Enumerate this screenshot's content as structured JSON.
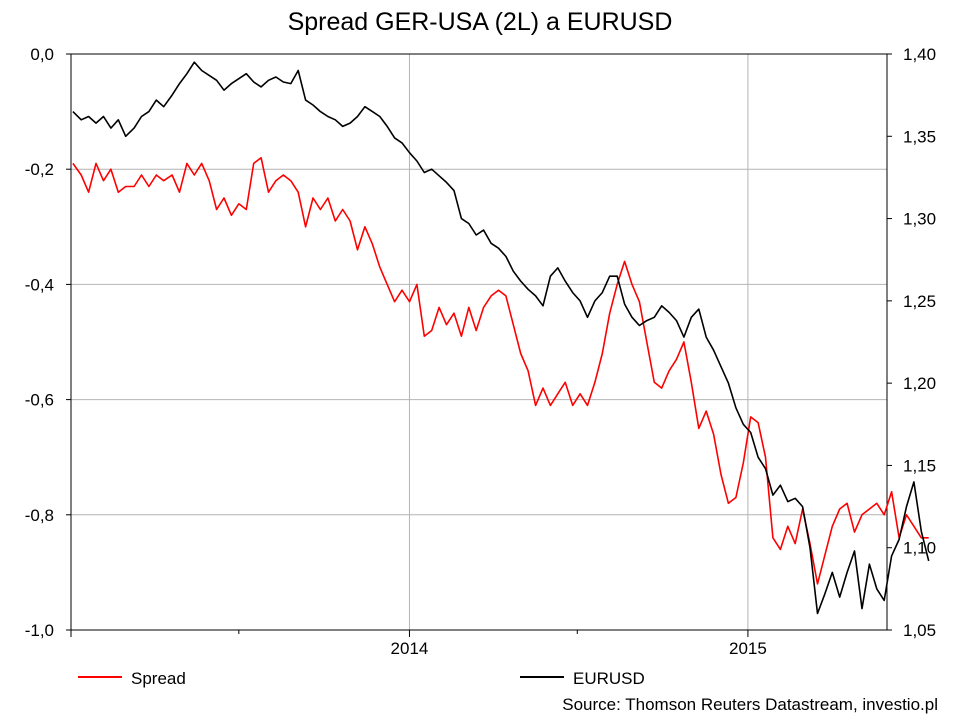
{
  "chart_data": {
    "type": "line",
    "title": "Spread GER-USA (2L) a EURUSD",
    "source": "Source: Thomson Reuters Datastream, investio.pl",
    "x_range": [
      "2013-01-01",
      "2015-05-31"
    ],
    "x_tick_labels": [
      {
        "date": "2014-01-01",
        "label": "2014"
      },
      {
        "date": "2015-01-01",
        "label": "2015"
      }
    ],
    "x_minor_ticks": [
      "2013-07-01",
      "2014-07-01"
    ],
    "left_axis": {
      "ylim": [
        -1.0,
        0.0
      ],
      "ticks": [
        0.0,
        -0.2,
        -0.4,
        -0.6,
        -0.8,
        -1.0
      ],
      "tick_labels": [
        "0,0",
        "-0,2",
        "-0,4",
        "-0,6",
        "-0,8",
        "-1,0"
      ]
    },
    "right_axis": {
      "ylim": [
        1.05,
        1.4
      ],
      "ticks": [
        1.4,
        1.35,
        1.3,
        1.25,
        1.2,
        1.15,
        1.1,
        1.05
      ],
      "tick_labels": [
        "1,40",
        "1,35",
        "1,30",
        "1,25",
        "1,20",
        "1,15",
        "1,10",
        "1,05"
      ]
    },
    "grid": true,
    "legend_position": "bottom",
    "series": [
      {
        "name": "Spread",
        "axis": "left",
        "color": "#ff0000",
        "points": [
          [
            "2013-01-03",
            -0.19
          ],
          [
            "2013-01-12",
            -0.21
          ],
          [
            "2013-01-20",
            -0.24
          ],
          [
            "2013-01-28",
            -0.19
          ],
          [
            "2013-02-05",
            -0.22
          ],
          [
            "2013-02-13",
            -0.2
          ],
          [
            "2013-02-21",
            -0.24
          ],
          [
            "2013-03-01",
            -0.23
          ],
          [
            "2013-03-10",
            -0.23
          ],
          [
            "2013-03-18",
            -0.21
          ],
          [
            "2013-03-26",
            -0.23
          ],
          [
            "2013-04-03",
            -0.21
          ],
          [
            "2013-04-11",
            -0.22
          ],
          [
            "2013-04-20",
            -0.21
          ],
          [
            "2013-04-28",
            -0.24
          ],
          [
            "2013-05-06",
            -0.19
          ],
          [
            "2013-05-14",
            -0.21
          ],
          [
            "2013-05-22",
            -0.19
          ],
          [
            "2013-05-30",
            -0.22
          ],
          [
            "2013-06-07",
            -0.27
          ],
          [
            "2013-06-15",
            -0.25
          ],
          [
            "2013-06-23",
            -0.28
          ],
          [
            "2013-07-01",
            -0.26
          ],
          [
            "2013-07-09",
            -0.27
          ],
          [
            "2013-07-17",
            -0.19
          ],
          [
            "2013-07-25",
            -0.18
          ],
          [
            "2013-08-02",
            -0.24
          ],
          [
            "2013-08-10",
            -0.22
          ],
          [
            "2013-08-18",
            -0.21
          ],
          [
            "2013-08-26",
            -0.22
          ],
          [
            "2013-09-03",
            -0.24
          ],
          [
            "2013-09-11",
            -0.3
          ],
          [
            "2013-09-19",
            -0.25
          ],
          [
            "2013-09-27",
            -0.27
          ],
          [
            "2013-10-05",
            -0.25
          ],
          [
            "2013-10-13",
            -0.29
          ],
          [
            "2013-10-21",
            -0.27
          ],
          [
            "2013-10-29",
            -0.29
          ],
          [
            "2013-11-06",
            -0.34
          ],
          [
            "2013-11-14",
            -0.3
          ],
          [
            "2013-11-22",
            -0.33
          ],
          [
            "2013-11-30",
            -0.37
          ],
          [
            "2013-12-08",
            -0.4
          ],
          [
            "2013-12-16",
            -0.43
          ],
          [
            "2013-12-24",
            -0.41
          ],
          [
            "2014-01-01",
            -0.43
          ],
          [
            "2014-01-09",
            -0.4
          ],
          [
            "2014-01-17",
            -0.49
          ],
          [
            "2014-01-25",
            -0.48
          ],
          [
            "2014-02-02",
            -0.44
          ],
          [
            "2014-02-10",
            -0.47
          ],
          [
            "2014-02-18",
            -0.45
          ],
          [
            "2014-02-26",
            -0.49
          ],
          [
            "2014-03-06",
            -0.44
          ],
          [
            "2014-03-14",
            -0.48
          ],
          [
            "2014-03-22",
            -0.44
          ],
          [
            "2014-03-30",
            -0.42
          ],
          [
            "2014-04-07",
            -0.41
          ],
          [
            "2014-04-15",
            -0.42
          ],
          [
            "2014-04-23",
            -0.47
          ],
          [
            "2014-05-01",
            -0.52
          ],
          [
            "2014-05-09",
            -0.55
          ],
          [
            "2014-05-17",
            -0.61
          ],
          [
            "2014-05-25",
            -0.58
          ],
          [
            "2014-06-02",
            -0.61
          ],
          [
            "2014-06-10",
            -0.59
          ],
          [
            "2014-06-18",
            -0.57
          ],
          [
            "2014-06-26",
            -0.61
          ],
          [
            "2014-07-04",
            -0.59
          ],
          [
            "2014-07-12",
            -0.61
          ],
          [
            "2014-07-20",
            -0.57
          ],
          [
            "2014-07-28",
            -0.52
          ],
          [
            "2014-08-05",
            -0.45
          ],
          [
            "2014-08-13",
            -0.4
          ],
          [
            "2014-08-21",
            -0.36
          ],
          [
            "2014-08-29",
            -0.4
          ],
          [
            "2014-09-06",
            -0.43
          ],
          [
            "2014-09-14",
            -0.5
          ],
          [
            "2014-09-22",
            -0.57
          ],
          [
            "2014-09-30",
            -0.58
          ],
          [
            "2014-10-08",
            -0.55
          ],
          [
            "2014-10-16",
            -0.53
          ],
          [
            "2014-10-24",
            -0.5
          ],
          [
            "2014-11-01",
            -0.57
          ],
          [
            "2014-11-09",
            -0.65
          ],
          [
            "2014-11-17",
            -0.62
          ],
          [
            "2014-11-25",
            -0.66
          ],
          [
            "2014-12-03",
            -0.73
          ],
          [
            "2014-12-11",
            -0.78
          ],
          [
            "2014-12-19",
            -0.77
          ],
          [
            "2014-12-27",
            -0.71
          ],
          [
            "2015-01-04",
            -0.63
          ],
          [
            "2015-01-12",
            -0.64
          ],
          [
            "2015-01-20",
            -0.7
          ],
          [
            "2015-01-28",
            -0.84
          ],
          [
            "2015-02-05",
            -0.86
          ],
          [
            "2015-02-13",
            -0.82
          ],
          [
            "2015-02-21",
            -0.85
          ],
          [
            "2015-03-01",
            -0.79
          ],
          [
            "2015-03-09",
            -0.85
          ],
          [
            "2015-03-17",
            -0.92
          ],
          [
            "2015-03-25",
            -0.87
          ],
          [
            "2015-04-02",
            -0.82
          ],
          [
            "2015-04-10",
            -0.79
          ],
          [
            "2015-04-18",
            -0.78
          ],
          [
            "2015-04-26",
            -0.83
          ],
          [
            "2015-05-04",
            -0.8
          ],
          [
            "2015-05-12",
            -0.79
          ],
          [
            "2015-05-20",
            -0.78
          ],
          [
            "2015-05-28",
            -0.8
          ],
          [
            "2015-06-05",
            -0.76
          ],
          [
            "2015-06-13",
            -0.84
          ],
          [
            "2015-06-21",
            -0.8
          ],
          [
            "2015-06-29",
            -0.82
          ],
          [
            "2015-07-07",
            -0.84
          ],
          [
            "2015-07-15",
            -0.84
          ]
        ]
      },
      {
        "name": "EURUSD",
        "axis": "right",
        "color": "#000000",
        "points": [
          [
            "2013-01-03",
            1.365
          ],
          [
            "2013-01-12",
            1.36
          ],
          [
            "2013-01-20",
            1.362
          ],
          [
            "2013-01-28",
            1.358
          ],
          [
            "2013-02-05",
            1.362
          ],
          [
            "2013-02-13",
            1.355
          ],
          [
            "2013-02-21",
            1.36
          ],
          [
            "2013-03-01",
            1.35
          ],
          [
            "2013-03-10",
            1.355
          ],
          [
            "2013-03-18",
            1.362
          ],
          [
            "2013-03-26",
            1.365
          ],
          [
            "2013-04-03",
            1.372
          ],
          [
            "2013-04-11",
            1.368
          ],
          [
            "2013-04-20",
            1.375
          ],
          [
            "2013-04-28",
            1.382
          ],
          [
            "2013-05-06",
            1.388
          ],
          [
            "2013-05-14",
            1.395
          ],
          [
            "2013-05-22",
            1.39
          ],
          [
            "2013-05-30",
            1.387
          ],
          [
            "2013-06-07",
            1.384
          ],
          [
            "2013-06-15",
            1.378
          ],
          [
            "2013-06-23",
            1.382
          ],
          [
            "2013-07-01",
            1.385
          ],
          [
            "2013-07-09",
            1.388
          ],
          [
            "2013-07-17",
            1.383
          ],
          [
            "2013-07-25",
            1.38
          ],
          [
            "2013-08-02",
            1.384
          ],
          [
            "2013-08-10",
            1.386
          ],
          [
            "2013-08-18",
            1.383
          ],
          [
            "2013-08-26",
            1.382
          ],
          [
            "2013-09-03",
            1.39
          ],
          [
            "2013-09-11",
            1.372
          ],
          [
            "2013-09-19",
            1.369
          ],
          [
            "2013-09-27",
            1.365
          ],
          [
            "2013-10-05",
            1.362
          ],
          [
            "2013-10-13",
            1.36
          ],
          [
            "2013-10-21",
            1.356
          ],
          [
            "2013-10-29",
            1.358
          ],
          [
            "2013-11-06",
            1.362
          ],
          [
            "2013-11-14",
            1.368
          ],
          [
            "2013-11-22",
            1.365
          ],
          [
            "2013-11-30",
            1.362
          ],
          [
            "2013-12-08",
            1.356
          ],
          [
            "2013-12-16",
            1.349
          ],
          [
            "2013-12-24",
            1.346
          ],
          [
            "2014-01-01",
            1.34
          ],
          [
            "2014-01-09",
            1.335
          ],
          [
            "2014-01-17",
            1.328
          ],
          [
            "2014-01-25",
            1.33
          ],
          [
            "2014-02-02",
            1.326
          ],
          [
            "2014-02-10",
            1.322
          ],
          [
            "2014-02-18",
            1.317
          ],
          [
            "2014-02-26",
            1.3
          ],
          [
            "2014-03-06",
            1.297
          ],
          [
            "2014-03-14",
            1.29
          ],
          [
            "2014-03-22",
            1.293
          ],
          [
            "2014-03-30",
            1.285
          ],
          [
            "2014-04-07",
            1.282
          ],
          [
            "2014-04-15",
            1.277
          ],
          [
            "2014-04-23",
            1.268
          ],
          [
            "2014-05-01",
            1.262
          ],
          [
            "2014-05-09",
            1.257
          ],
          [
            "2014-05-17",
            1.253
          ],
          [
            "2014-05-25",
            1.247
          ],
          [
            "2014-06-02",
            1.265
          ],
          [
            "2014-06-10",
            1.27
          ],
          [
            "2014-06-18",
            1.262
          ],
          [
            "2014-06-26",
            1.255
          ],
          [
            "2014-07-04",
            1.25
          ],
          [
            "2014-07-12",
            1.24
          ],
          [
            "2014-07-20",
            1.25
          ],
          [
            "2014-07-28",
            1.255
          ],
          [
            "2014-08-05",
            1.265
          ],
          [
            "2014-08-13",
            1.265
          ],
          [
            "2014-08-21",
            1.248
          ],
          [
            "2014-08-29",
            1.24
          ],
          [
            "2014-09-06",
            1.235
          ],
          [
            "2014-09-14",
            1.238
          ],
          [
            "2014-09-22",
            1.24
          ],
          [
            "2014-09-30",
            1.247
          ],
          [
            "2014-10-08",
            1.243
          ],
          [
            "2014-10-16",
            1.238
          ],
          [
            "2014-10-24",
            1.228
          ],
          [
            "2014-11-01",
            1.24
          ],
          [
            "2014-11-09",
            1.245
          ],
          [
            "2014-11-17",
            1.228
          ],
          [
            "2014-11-25",
            1.22
          ],
          [
            "2014-12-03",
            1.21
          ],
          [
            "2014-12-11",
            1.2
          ],
          [
            "2014-12-19",
            1.185
          ],
          [
            "2014-12-27",
            1.175
          ],
          [
            "2015-01-04",
            1.17
          ],
          [
            "2015-01-12",
            1.155
          ],
          [
            "2015-01-20",
            1.148
          ],
          [
            "2015-01-28",
            1.132
          ],
          [
            "2015-02-05",
            1.138
          ],
          [
            "2015-02-13",
            1.128
          ],
          [
            "2015-02-21",
            1.13
          ],
          [
            "2015-03-01",
            1.125
          ],
          [
            "2015-03-09",
            1.1
          ],
          [
            "2015-03-17",
            1.06
          ],
          [
            "2015-03-25",
            1.072
          ],
          [
            "2015-04-02",
            1.085
          ],
          [
            "2015-04-10",
            1.07
          ],
          [
            "2015-04-18",
            1.085
          ],
          [
            "2015-04-26",
            1.098
          ],
          [
            "2015-05-04",
            1.063
          ],
          [
            "2015-05-12",
            1.09
          ],
          [
            "2015-05-20",
            1.075
          ],
          [
            "2015-05-28",
            1.068
          ],
          [
            "2015-06-05",
            1.095
          ],
          [
            "2015-06-13",
            1.105
          ],
          [
            "2015-06-21",
            1.125
          ],
          [
            "2015-06-29",
            1.14
          ],
          [
            "2015-07-07",
            1.11
          ],
          [
            "2015-07-15",
            1.092
          ]
        ]
      }
    ]
  }
}
